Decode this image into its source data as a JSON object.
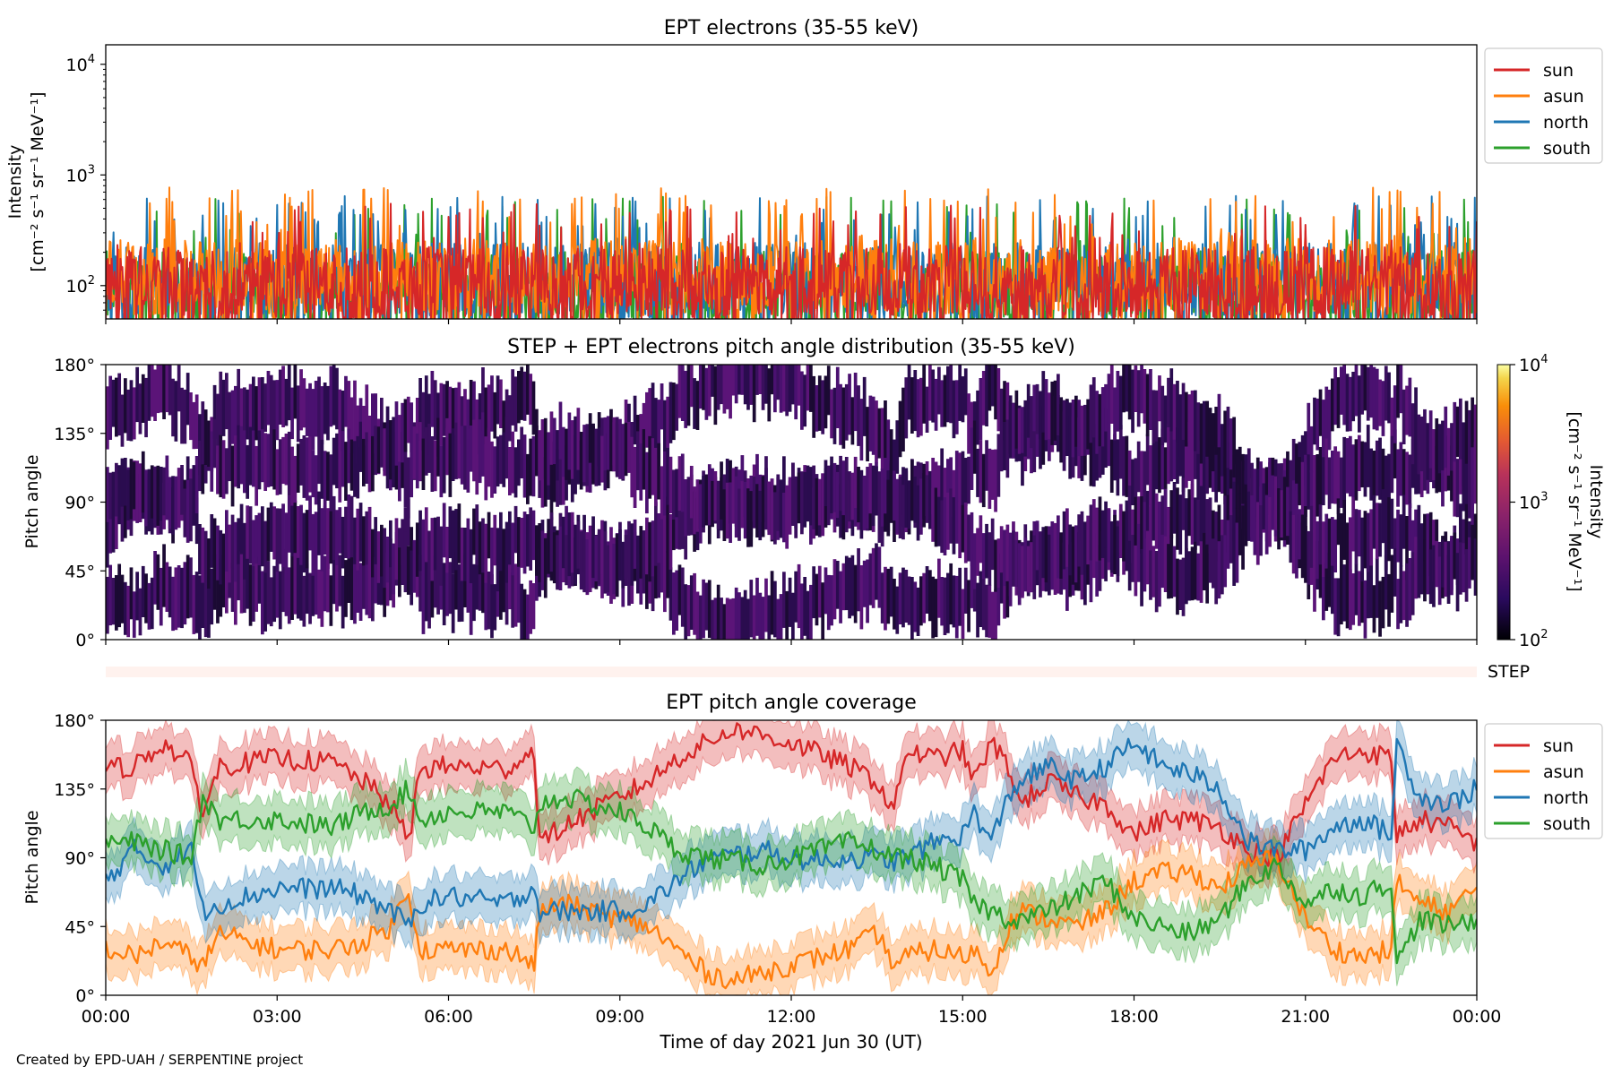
{
  "colors": {
    "sun": "#d62728",
    "asun": "#ff7f0e",
    "north": "#1f77b4",
    "south": "#2ca02c",
    "pad_dark": "#1b0a33",
    "step_bar": "#fff2ee"
  },
  "chart_data": [
    {
      "type": "line",
      "title": "EPT electrons (35-55 keV)",
      "ylabel_line1": "Intensity",
      "ylabel_line2": "[cm⁻² s⁻¹ sr⁻¹ MeV⁻¹]",
      "yscale": "log",
      "ylim": [
        50,
        15000
      ],
      "yticks": [
        {
          "value": 100,
          "base": "10",
          "exp": "2"
        },
        {
          "value": 1000,
          "base": "10",
          "exp": "3"
        },
        {
          "value": 10000,
          "base": "10",
          "exp": "4"
        }
      ],
      "xlim": [
        "00:00",
        "24:00"
      ],
      "legend_position": "outside-right-top",
      "series": [
        {
          "name": "sun",
          "typical": 110,
          "peak_max": 550
        },
        {
          "name": "asun",
          "typical": 130,
          "peak_max": 780
        },
        {
          "name": "north",
          "typical": 120,
          "peak_max": 650
        },
        {
          "name": "south",
          "typical": 100,
          "peak_max": 640
        }
      ]
    },
    {
      "type": "heatmap",
      "title": "STEP + EPT electrons pitch angle distribution (35-55 keV)",
      "ylabel": "Pitch angle",
      "ylim": [
        0,
        180
      ],
      "yticks": [
        "0°",
        "45°",
        "90°",
        "135°",
        "180°"
      ],
      "colorbar": {
        "label_line1": "Intensity",
        "label_line2": "[cm⁻² s⁻¹ sr⁻¹ MeV⁻¹]",
        "scale": "log",
        "range": [
          100,
          10000
        ],
        "ticks": [
          {
            "value": 100,
            "base": "10",
            "exp": "2"
          },
          {
            "value": 1000,
            "base": "10",
            "exp": "3"
          },
          {
            "value": 10000,
            "base": "10",
            "exp": "4"
          }
        ]
      },
      "step_label": "STEP"
    },
    {
      "type": "line",
      "title": "EPT pitch angle coverage",
      "ylabel": "Pitch angle",
      "ylim": [
        0,
        180
      ],
      "yticks": [
        "0°",
        "45°",
        "90°",
        "135°",
        "180°"
      ],
      "xlabel": "Time of day 2021 Jun 30 (UT)",
      "xticks": [
        "00:00",
        "03:00",
        "06:00",
        "09:00",
        "12:00",
        "15:00",
        "18:00",
        "21:00",
        "00:00"
      ],
      "band_halfwidth_deg": 15,
      "legend_position": "outside-right-top",
      "x_hours": [
        0,
        0.5,
        1.0,
        1.5,
        1.7,
        2.0,
        3.0,
        4.0,
        4.5,
        5.0,
        5.3,
        5.5,
        6.0,
        7.0,
        7.5,
        7.6,
        8.0,
        9.0,
        9.5,
        10.0,
        10.5,
        11.0,
        11.5,
        12.0,
        12.5,
        13.0,
        13.5,
        13.8,
        14.0,
        14.5,
        15.0,
        15.2,
        15.5,
        15.8,
        16.0,
        16.5,
        17.0,
        17.5,
        18.0,
        18.5,
        19.0,
        19.5,
        20.0,
        20.5,
        21.0,
        21.5,
        22.0,
        22.5,
        22.6,
        23.0,
        23.5,
        24.0
      ],
      "series": [
        {
          "name": "sun",
          "values": [
            148,
            150,
            165,
            150,
            120,
            150,
            155,
            152,
            140,
            125,
            100,
            148,
            150,
            148,
            160,
            100,
            110,
            130,
            140,
            155,
            165,
            175,
            170,
            165,
            158,
            150,
            140,
            120,
            160,
            155,
            160,
            140,
            165,
            150,
            125,
            140,
            130,
            125,
            105,
            115,
            115,
            110,
            95,
            90,
            125,
            155,
            160,
            155,
            105,
            115,
            110,
            100
          ]
        },
        {
          "name": "asun",
          "values": [
            30,
            25,
            35,
            25,
            20,
            40,
            30,
            30,
            35,
            45,
            70,
            30,
            30,
            30,
            20,
            55,
            60,
            50,
            45,
            30,
            15,
            10,
            15,
            20,
            25,
            30,
            40,
            20,
            25,
            30,
            25,
            30,
            15,
            45,
            55,
            50,
            45,
            55,
            75,
            80,
            80,
            70,
            85,
            90,
            50,
            30,
            25,
            30,
            75,
            60,
            55,
            70
          ]
        },
        {
          "name": "north",
          "values": [
            75,
            95,
            85,
            95,
            55,
            60,
            70,
            70,
            65,
            55,
            45,
            60,
            65,
            60,
            70,
            55,
            55,
            55,
            60,
            75,
            88,
            92,
            95,
            90,
            88,
            90,
            90,
            88,
            90,
            100,
            105,
            120,
            100,
            130,
            140,
            150,
            140,
            150,
            165,
            150,
            145,
            135,
            100,
            95,
            95,
            110,
            115,
            105,
            165,
            130,
            125,
            135
          ]
        },
        {
          "name": "south",
          "values": [
            100,
            100,
            95,
            90,
            130,
            115,
            115,
            110,
            120,
            125,
            135,
            115,
            120,
            120,
            110,
            125,
            130,
            120,
            110,
            95,
            90,
            88,
            85,
            90,
            95,
            100,
            95,
            90,
            90,
            85,
            75,
            60,
            55,
            50,
            50,
            55,
            65,
            75,
            50,
            45,
            40,
            50,
            75,
            85,
            60,
            70,
            65,
            75,
            20,
            50,
            45,
            50
          ]
        }
      ]
    }
  ],
  "footer": {
    "credit": "Created by EPD-UAH / SERPENTINE project"
  }
}
